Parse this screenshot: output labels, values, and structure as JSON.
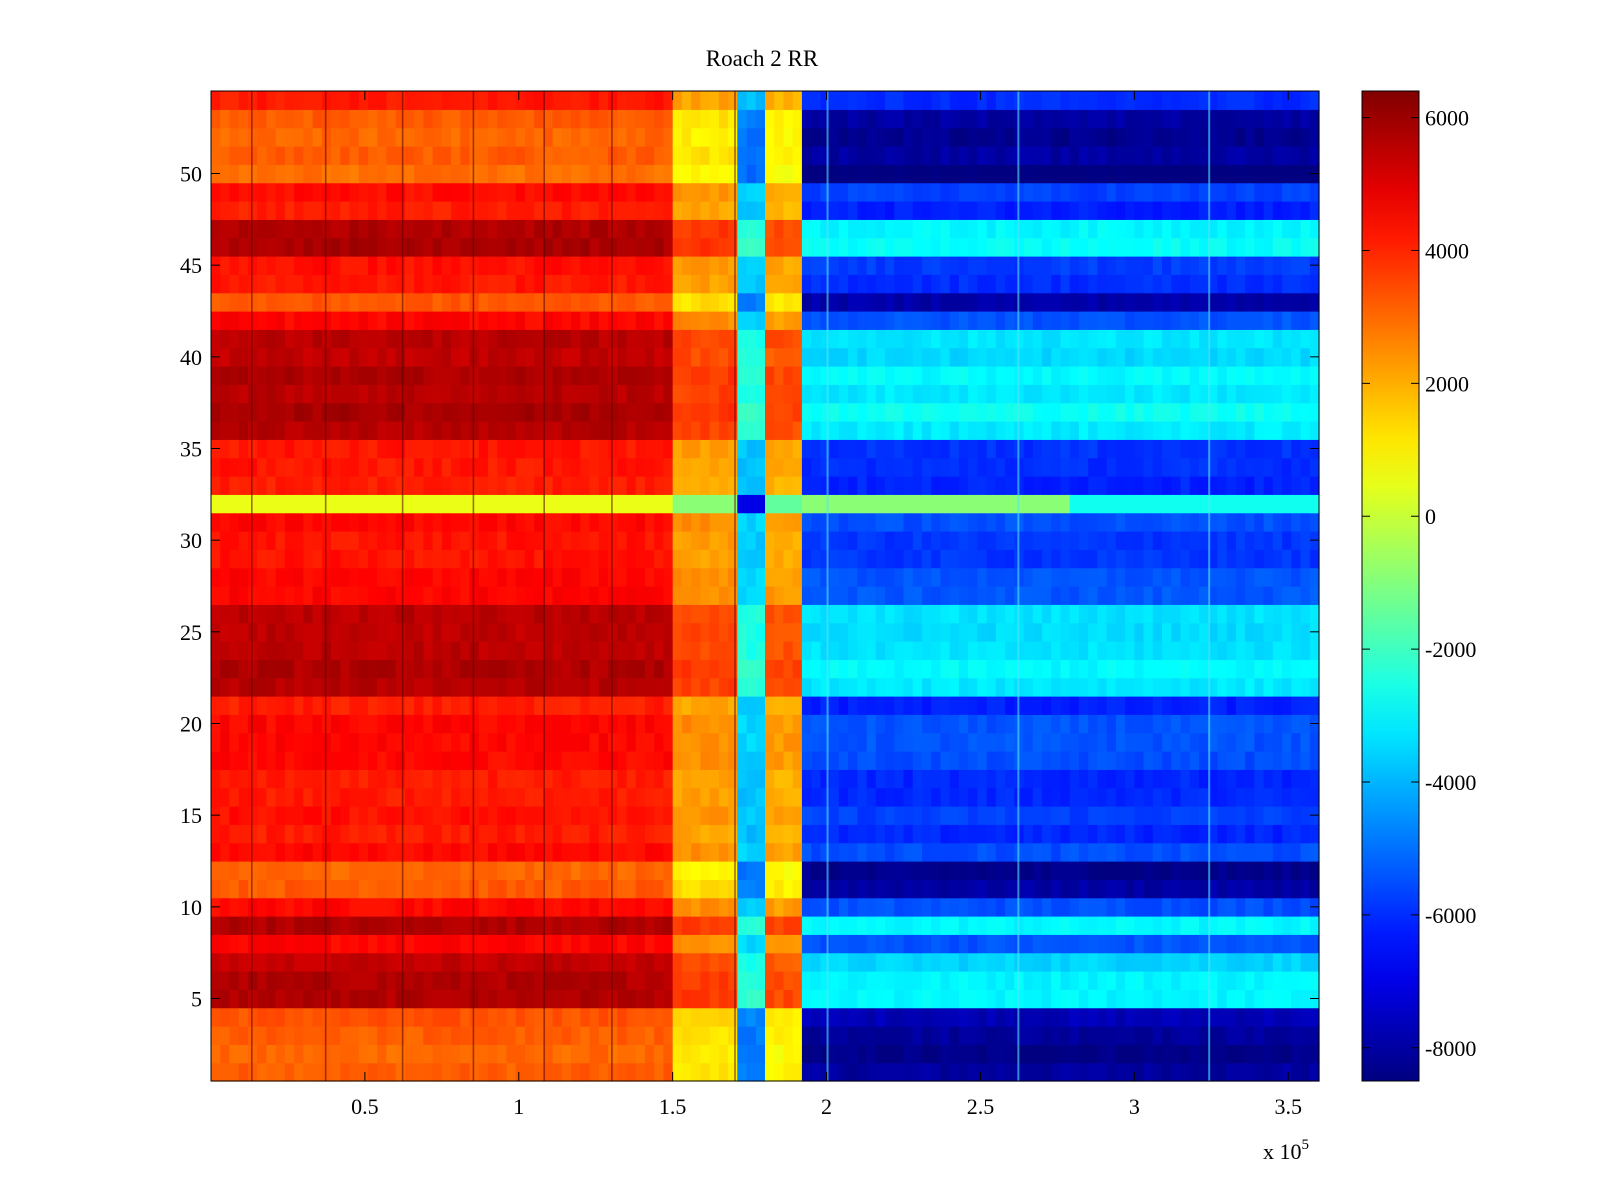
{
  "chart_data": {
    "type": "heatmap",
    "title": "Roach 2 RR",
    "xlabel": "",
    "ylabel": "",
    "x_multiplier_label": "x 10",
    "x_multiplier_exponent": "5",
    "xlim": [
      0,
      3.6
    ],
    "ylim": [
      0.5,
      54.5
    ],
    "x_ticks": [
      0.5,
      1,
      1.5,
      2,
      2.5,
      3,
      3.5
    ],
    "x_tick_labels": [
      "0.5",
      "1",
      "1.5",
      "2",
      "2.5",
      "3",
      "3.5"
    ],
    "y_ticks": [
      5,
      10,
      15,
      20,
      25,
      30,
      35,
      40,
      45,
      50
    ],
    "y_tick_labels": [
      "5",
      "10",
      "15",
      "20",
      "25",
      "30",
      "35",
      "40",
      "45",
      "50"
    ],
    "colorbar": {
      "colormap": "jet",
      "clim": [
        -8500,
        6400
      ],
      "ticks": [
        6000,
        4000,
        2000,
        0,
        -2000,
        -4000,
        -6000,
        -8000
      ],
      "tick_labels": [
        "6000",
        "4000",
        "2000",
        "0",
        "-2000",
        "-4000",
        "-6000",
        "-8000"
      ]
    },
    "x_regions": [
      {
        "x_start": 0.0,
        "x_end": 1.5,
        "base_value": 4300
      },
      {
        "x_start": 1.5,
        "x_end": 1.7,
        "base_value": 2300
      },
      {
        "x_start": 1.7,
        "x_end": 1.8,
        "base_value": -3700
      },
      {
        "x_start": 1.8,
        "x_end": 1.92,
        "base_value": 2100
      },
      {
        "x_start": 1.92,
        "x_end": 3.6,
        "base_value": -5800
      }
    ],
    "row_structure": {
      "y_min": 1,
      "y_max": 54,
      "anomalous_row": {
        "y": 32,
        "value": 500,
        "right_value": -2700
      },
      "deep_rows": [
        1,
        2,
        3,
        4,
        11,
        12,
        43,
        50,
        51,
        52,
        53
      ],
      "light_rows": [
        5,
        6,
        7,
        9,
        22,
        23,
        24,
        25,
        26,
        36,
        37,
        38,
        39,
        40,
        41,
        46,
        47
      ]
    },
    "vertical_streak_x": [
      0.13,
      0.37,
      0.62,
      0.85,
      1.08,
      1.3,
      1.7
    ],
    "right_streak_x": [
      2.0,
      2.62,
      3.24
    ]
  }
}
